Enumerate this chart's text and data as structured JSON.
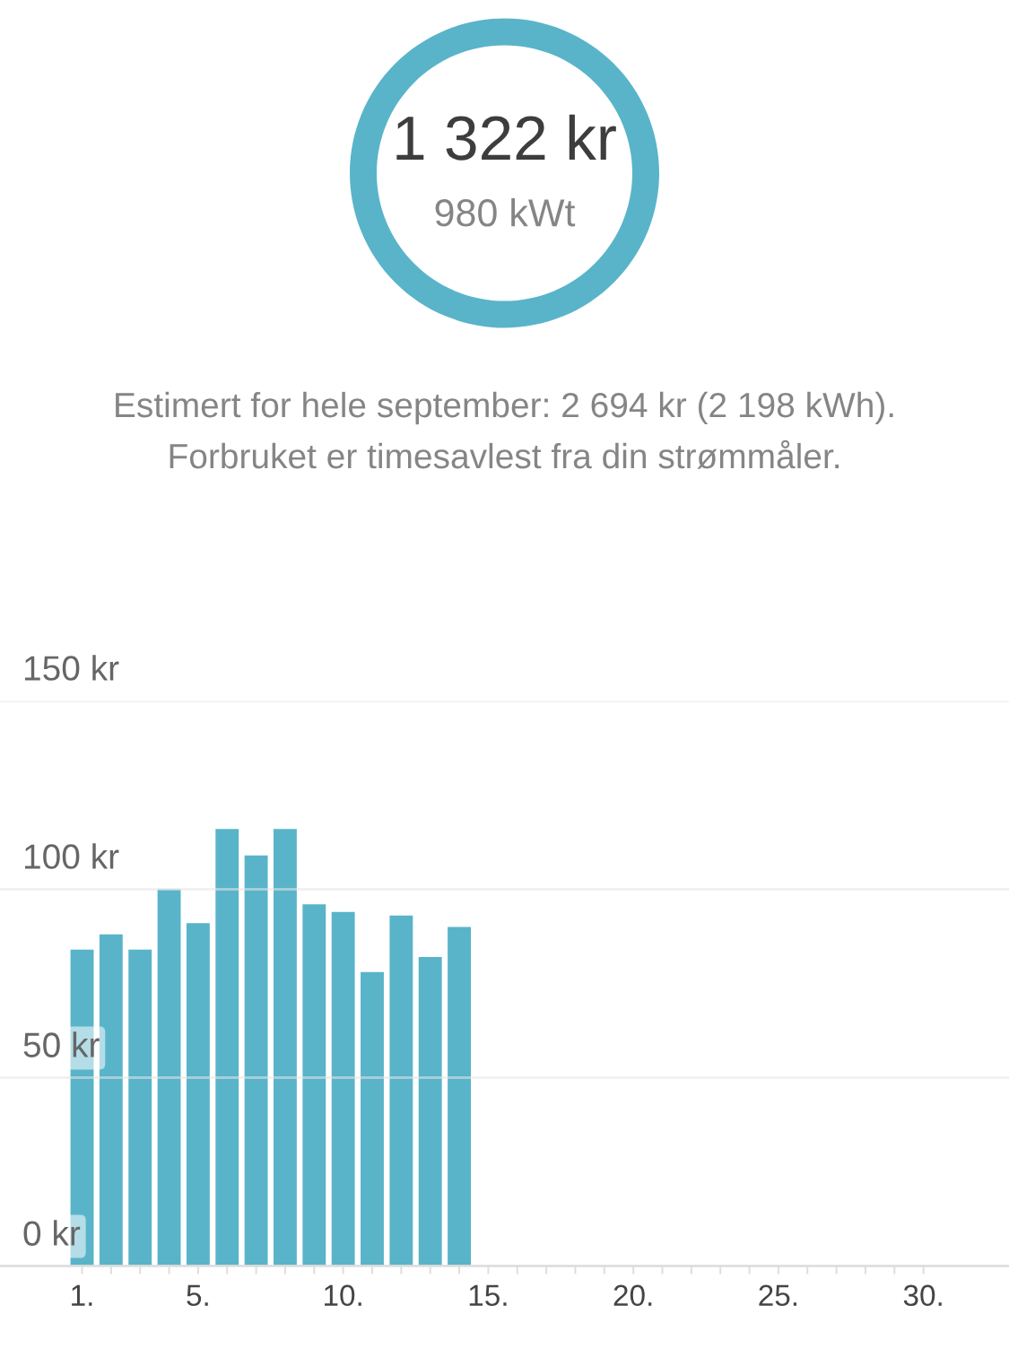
{
  "chart_data": [
    {
      "type": "other",
      "title": "1 322 kr",
      "subtitle": "980 kWt",
      "annotations": [
        "Estimert for hele september: 2 694 kr (2 198 kWh).",
        "Forbruket er timesavlest fra din strømmåler."
      ]
    },
    {
      "type": "bar",
      "categories": [
        "1.",
        null,
        null,
        null,
        "5.",
        null,
        null,
        null,
        null,
        "10.",
        null,
        null,
        null,
        null,
        "15.",
        null,
        null,
        null,
        null,
        "20.",
        null,
        null,
        null,
        null,
        "25.",
        null,
        null,
        null,
        null,
        "30."
      ],
      "values": [
        84,
        88,
        84,
        100,
        91,
        116,
        109,
        116,
        96,
        94,
        78,
        93,
        82,
        90,
        null,
        null,
        null,
        null,
        null,
        null,
        null,
        null,
        null,
        null,
        null,
        null,
        null,
        null,
        null,
        null
      ],
      "color": "#59b4c9",
      "ylim": [
        0,
        150
      ],
      "yticks": [
        {
          "value": 0,
          "label": "0 kr"
        },
        {
          "value": 50,
          "label": "50 kr"
        },
        {
          "value": 100,
          "label": "100 kr"
        },
        {
          "value": 150,
          "label": "150 kr"
        }
      ],
      "grid": "y"
    }
  ]
}
